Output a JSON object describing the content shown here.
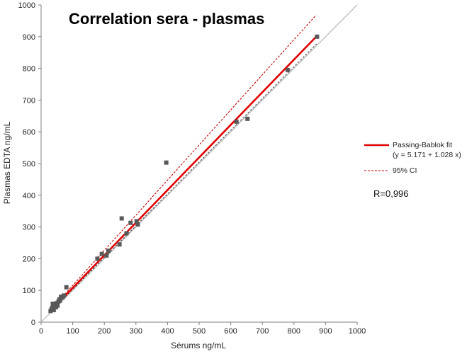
{
  "chart_data": {
    "type": "scatter",
    "title": "Correlation sera - plasmas",
    "xlabel": "Sérums ng/mL",
    "ylabel": "Plasmas EDTA  ng/mL",
    "xlim": [
      0,
      1000
    ],
    "ylim": [
      0,
      1000
    ],
    "xticks": [
      0,
      100,
      200,
      300,
      400,
      500,
      600,
      700,
      800,
      900,
      1000
    ],
    "yticks": [
      0,
      100,
      200,
      300,
      400,
      500,
      600,
      700,
      800,
      900,
      1000
    ],
    "colors": {
      "points": "#595959",
      "fit": "#e00000",
      "ci": "#c00000",
      "identity": "#b4b4b4",
      "axis": "#7f7f7f"
    },
    "points": [
      {
        "x": 30,
        "y": 35
      },
      {
        "x": 33,
        "y": 40
      },
      {
        "x": 35,
        "y": 45
      },
      {
        "x": 37,
        "y": 58
      },
      {
        "x": 40,
        "y": 38
      },
      {
        "x": 42,
        "y": 50
      },
      {
        "x": 45,
        "y": 55
      },
      {
        "x": 47,
        "y": 47
      },
      {
        "x": 50,
        "y": 60
      },
      {
        "x": 52,
        "y": 52
      },
      {
        "x": 55,
        "y": 65
      },
      {
        "x": 58,
        "y": 72
      },
      {
        "x": 60,
        "y": 68
      },
      {
        "x": 63,
        "y": 80
      },
      {
        "x": 68,
        "y": 78
      },
      {
        "x": 72,
        "y": 84
      },
      {
        "x": 80,
        "y": 110
      },
      {
        "x": 178,
        "y": 200
      },
      {
        "x": 192,
        "y": 215
      },
      {
        "x": 207,
        "y": 210
      },
      {
        "x": 213,
        "y": 225
      },
      {
        "x": 248,
        "y": 245
      },
      {
        "x": 255,
        "y": 327
      },
      {
        "x": 270,
        "y": 280
      },
      {
        "x": 283,
        "y": 313
      },
      {
        "x": 302,
        "y": 318
      },
      {
        "x": 306,
        "y": 308
      },
      {
        "x": 396,
        "y": 503
      },
      {
        "x": 618,
        "y": 632
      },
      {
        "x": 653,
        "y": 641
      },
      {
        "x": 780,
        "y": 795
      },
      {
        "x": 873,
        "y": 900
      }
    ],
    "fit": {
      "intercept": 5.171,
      "slope": 1.028,
      "x_range": [
        30,
        873
      ]
    },
    "ci": {
      "upper": {
        "intercept": 5.0,
        "slope": 1.107,
        "x_range": [
          30,
          870
        ]
      },
      "lower": {
        "intercept": 3.0,
        "slope": 1.003,
        "x_range": [
          30,
          875
        ]
      }
    },
    "identity_range": [
      0,
      1000
    ],
    "legend": [
      {
        "label": "Passing-Bablok fit",
        "label2": "(y = 5.171 + 1.028 x)",
        "style": "solid"
      },
      {
        "label": "95% CI",
        "style": "dashed"
      }
    ],
    "annotation": "R=0,996"
  }
}
